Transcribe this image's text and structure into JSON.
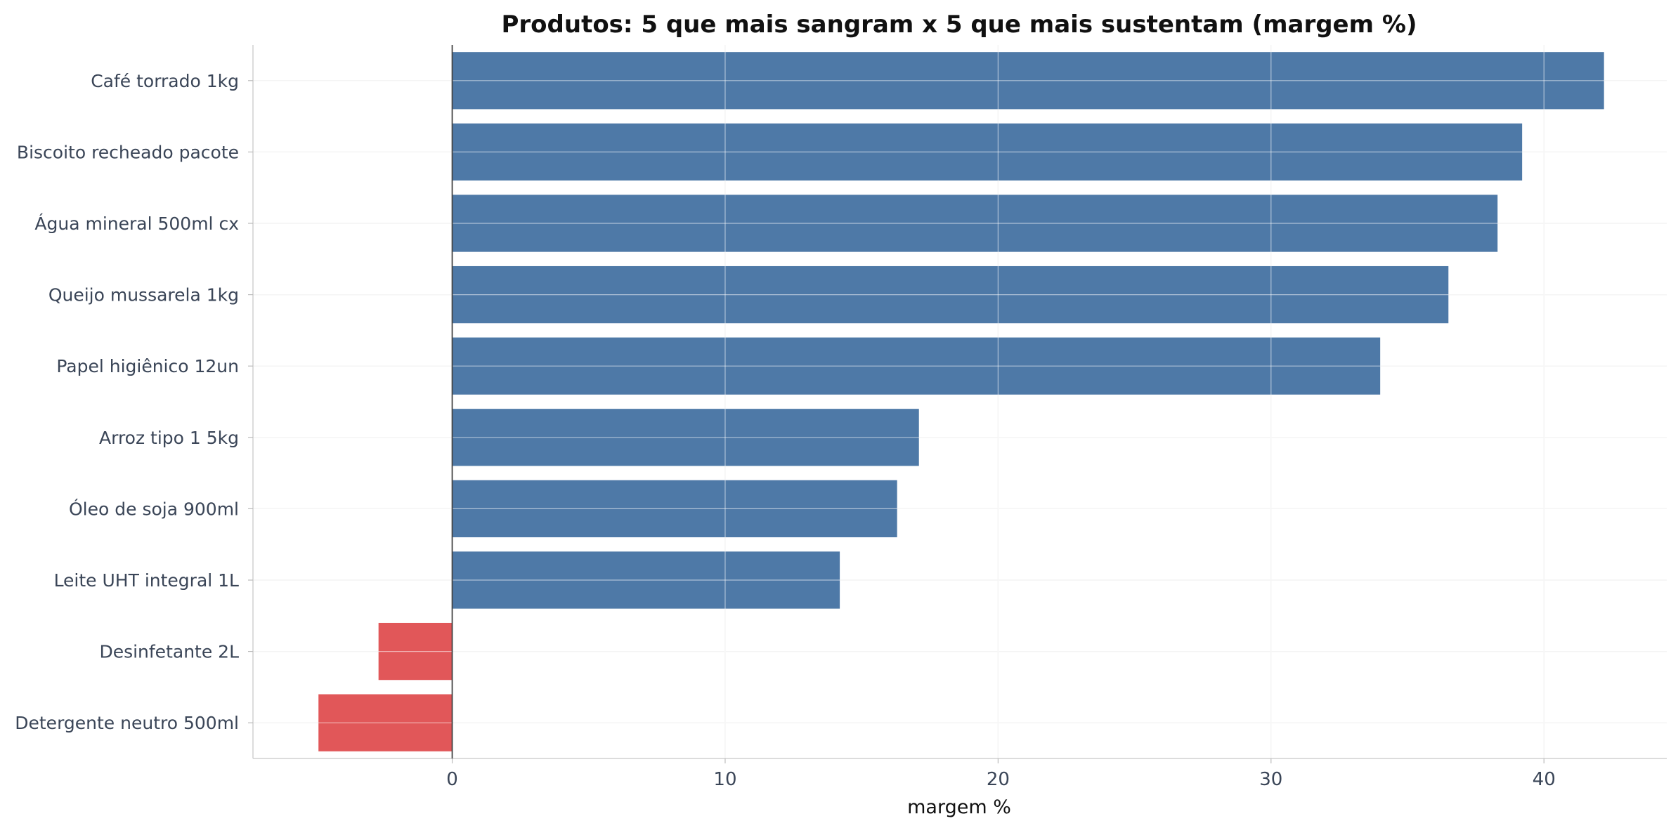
{
  "chart_data": {
    "type": "bar",
    "orientation": "horizontal",
    "title": "Produtos: 5 que mais sangram x 5 que mais sustentam (margem %)",
    "xlabel": "margem %",
    "ylabel": "",
    "xlim": [
      -7.3,
      44.5
    ],
    "xticks": [
      0,
      10,
      20,
      30,
      40
    ],
    "categories": [
      "Café torrado 1kg",
      "Biscoito recheado pacote",
      "Água mineral 500ml cx",
      "Queijo mussarela 1kg",
      "Papel higiênico 12un",
      "Arroz tipo 1 5kg",
      "Óleo de soja 900ml",
      "Leite UHT integral 1L",
      "Desinfetante 2L",
      "Detergente neutro 500ml"
    ],
    "values": [
      42.2,
      39.2,
      38.3,
      36.5,
      34.0,
      17.1,
      16.3,
      14.2,
      -2.7,
      -4.9
    ],
    "colors": {
      "positive": "#4e79a7",
      "negative": "#e15759"
    },
    "grid": true,
    "legend": "none"
  }
}
